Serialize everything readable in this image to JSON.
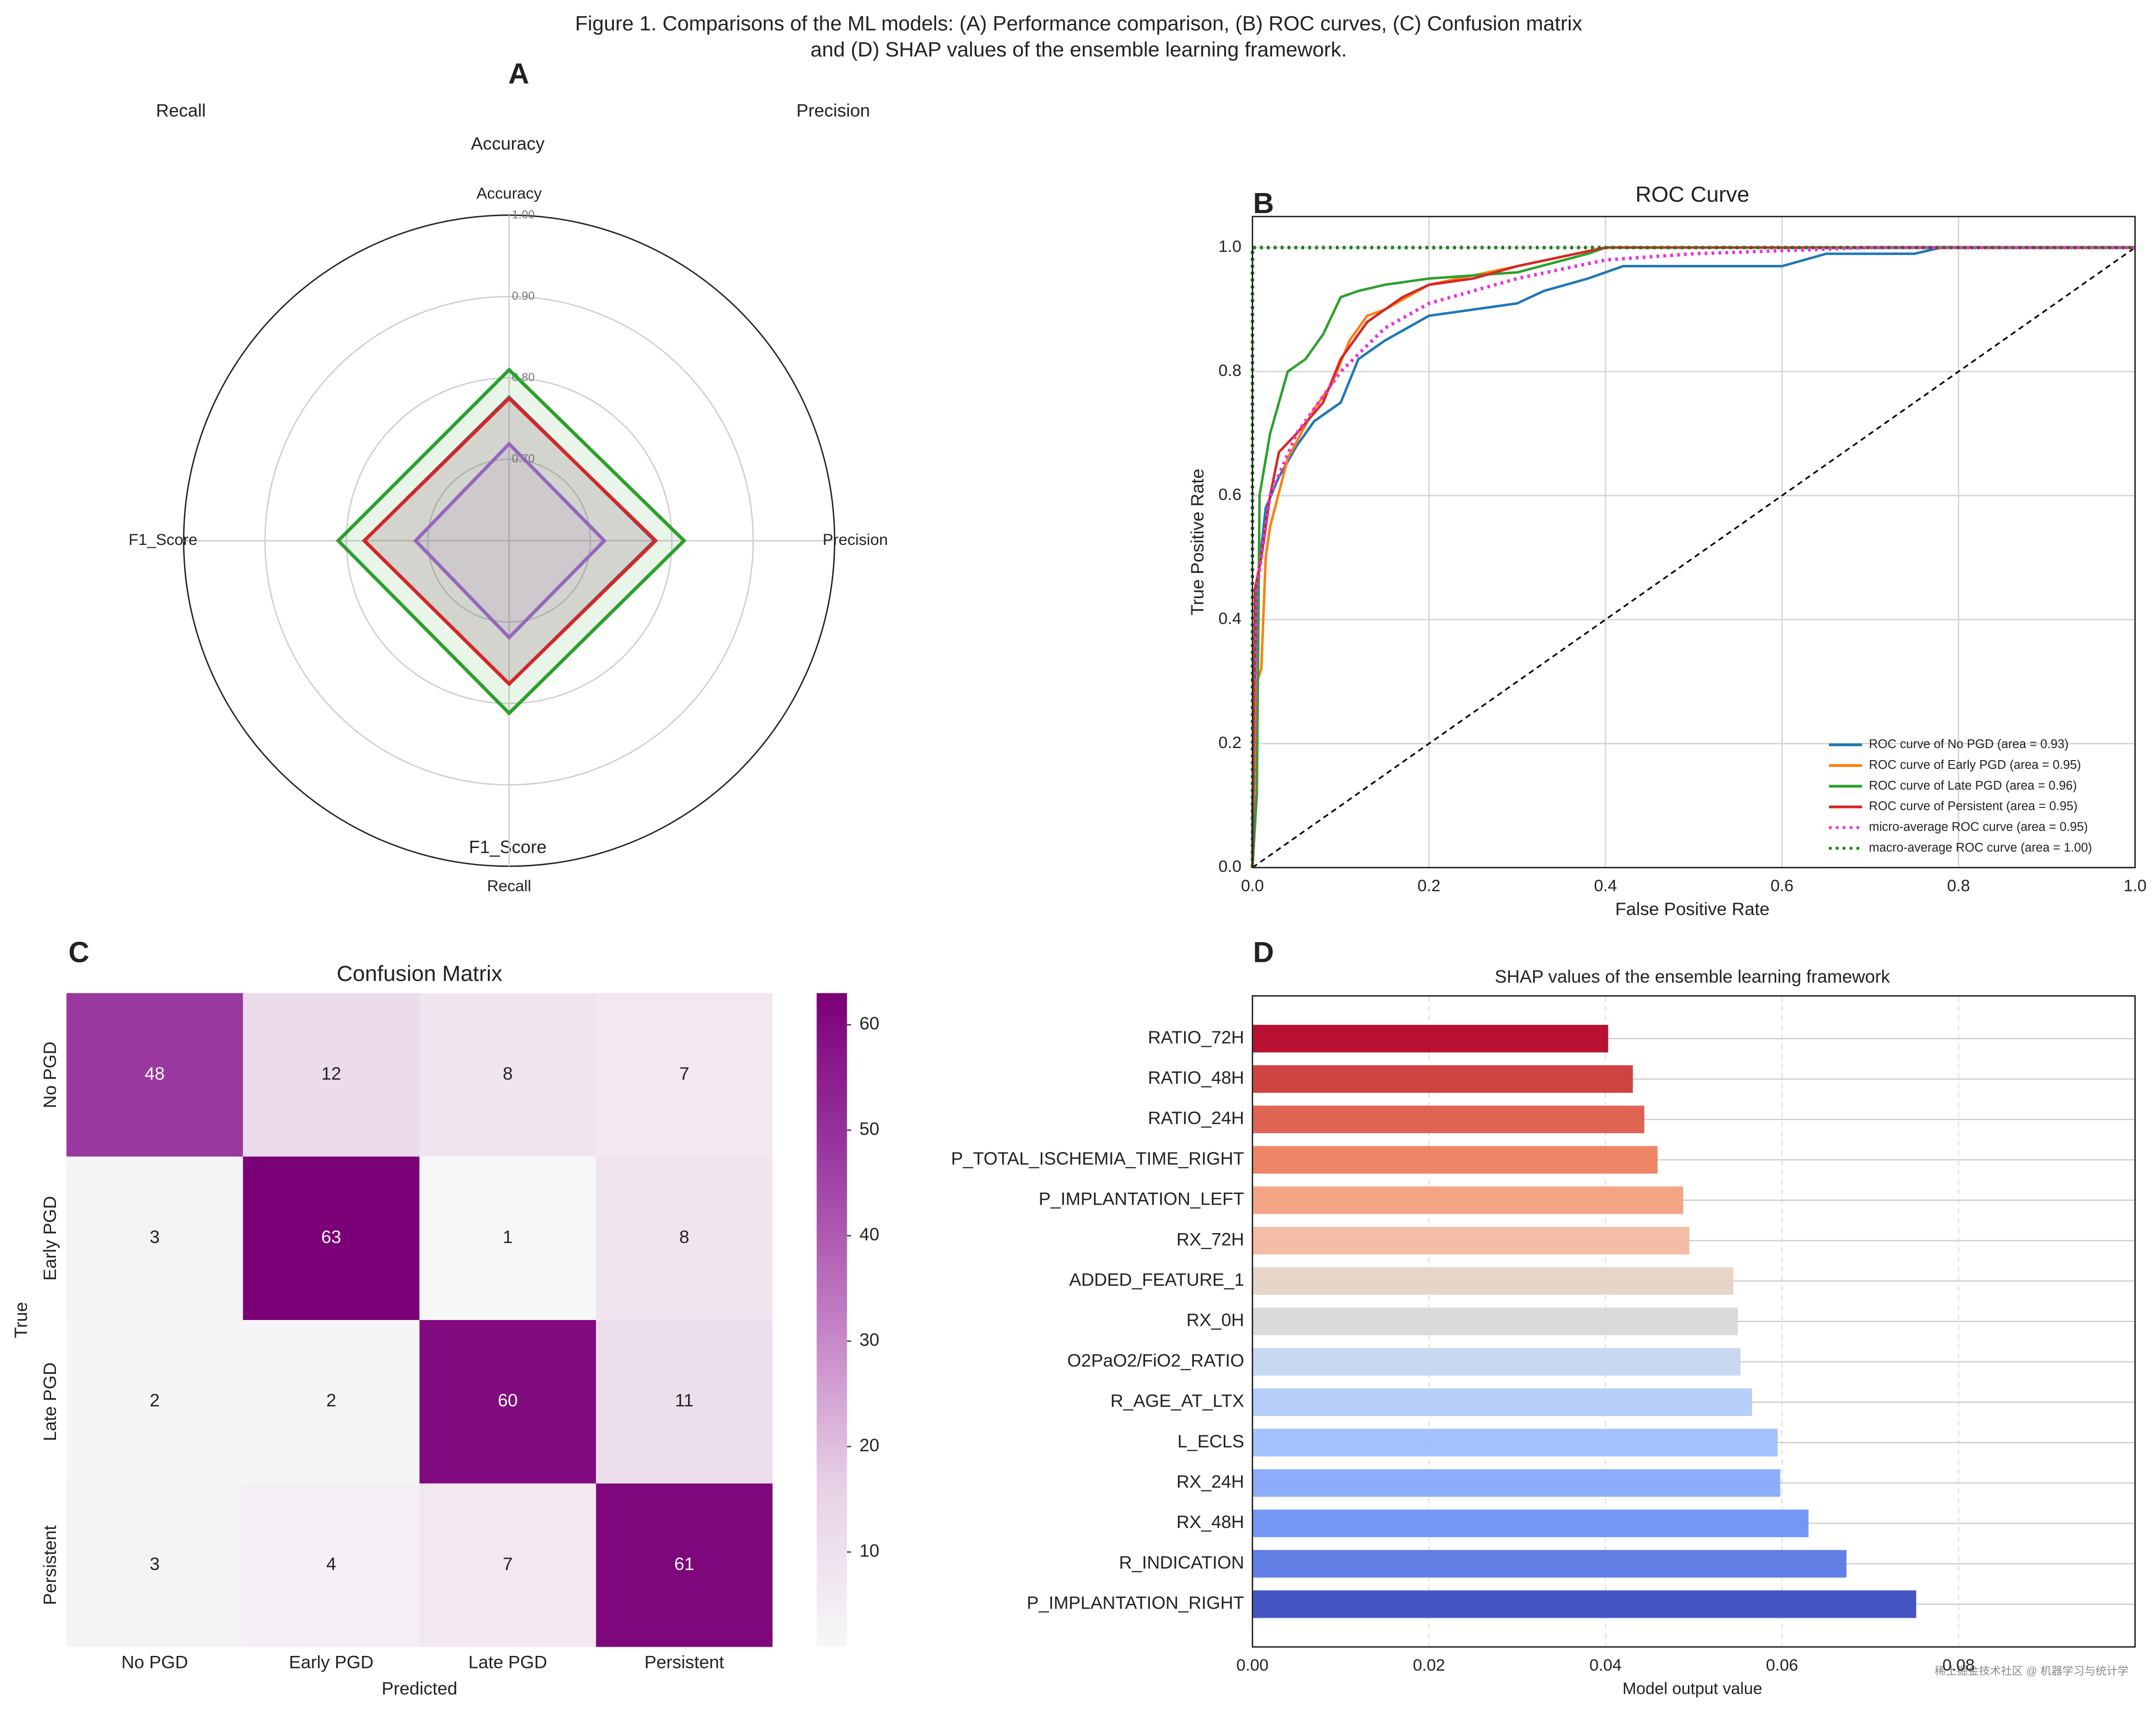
{
  "figure_title": [
    "Figure 1. Comparisons of the ML models: (A) Performance comparison, (B) ROC curves, (C) Confusion matrix",
    "and (D) SHAP values of the ensemble learning framework."
  ],
  "watermark": "稀土掘金技术社区 @ 机器学习与统计学",
  "chart_data": [
    {
      "type": "radar",
      "panel": "A",
      "annotations": [
        "Recall",
        "Accuracy",
        "Precision",
        "F1_Score"
      ],
      "axes": [
        "Accuracy",
        "Precision",
        "Recall",
        "F1_Score"
      ],
      "rlim": [
        0.6,
        1.0
      ],
      "rticks": [
        {
          "value": 0.7,
          "label": "0.70"
        },
        {
          "value": 0.8,
          "label": "0.80"
        },
        {
          "value": 0.9,
          "label": "0.90"
        },
        {
          "value": 1.0,
          "label": "1.00"
        }
      ],
      "series": [
        {
          "color": "#1f77b4",
          "values": [
            0.776,
            0.779,
            0.776,
            0.778
          ]
        },
        {
          "color": "#2ca02c",
          "values": [
            0.81,
            0.815,
            0.812,
            0.81
          ]
        },
        {
          "color": "#d62728",
          "values": [
            0.775,
            0.78,
            0.776,
            0.778
          ]
        },
        {
          "color": "#9467bd",
          "values": [
            0.719,
            0.717,
            0.719,
            0.715
          ]
        }
      ]
    },
    {
      "type": "line",
      "panel": "B",
      "title": "ROC Curve",
      "x_label": "False Positive Rate",
      "y_label": "True Positive Rate",
      "xlim": [
        0,
        1
      ],
      "ylim": [
        0,
        1.05
      ],
      "grid": true,
      "legend": "lower right",
      "xticks": [
        {
          "value": 0,
          "label": "0.0"
        },
        {
          "value": 0.2,
          "label": "0.2"
        },
        {
          "value": 0.4,
          "label": "0.4"
        },
        {
          "value": 0.6,
          "label": "0.6"
        },
        {
          "value": 0.8,
          "label": "0.8"
        },
        {
          "value": 1,
          "label": "1.0"
        }
      ],
      "yticks": [
        {
          "value": 0,
          "label": "0.0"
        },
        {
          "value": 0.2,
          "label": "0.2"
        },
        {
          "value": 0.4,
          "label": "0.4"
        },
        {
          "value": 0.6,
          "label": "0.6"
        },
        {
          "value": 0.8,
          "label": "0.8"
        },
        {
          "value": 1,
          "label": "1.0"
        }
      ],
      "series": [
        {
          "name": "ROC curve of No PGD (area = 0.93)",
          "color": "#1f77b4",
          "linestyle": "solid",
          "x": [
            0,
            0,
            0.005,
            0.015,
            0.03,
            0.05,
            0.07,
            0.1,
            0.12,
            0.15,
            0.2,
            0.25,
            0.3,
            0.33,
            0.38,
            0.42,
            0.6,
            0.65,
            0.75,
            0.78,
            1
          ],
          "y": [
            0,
            0.1,
            0.45,
            0.58,
            0.63,
            0.68,
            0.72,
            0.75,
            0.82,
            0.85,
            0.89,
            0.9,
            0.91,
            0.93,
            0.95,
            0.97,
            0.97,
            0.99,
            0.99,
            1,
            1
          ]
        },
        {
          "name": "ROC curve of Early PGD (area = 0.95)",
          "color": "#ff7f0e",
          "linestyle": "solid",
          "x": [
            0,
            0.005,
            0.01,
            0.015,
            0.02,
            0.04,
            0.07,
            0.09,
            0.11,
            0.13,
            0.15,
            0.2,
            0.3,
            0.4,
            1
          ],
          "y": [
            0,
            0.3,
            0.32,
            0.5,
            0.55,
            0.66,
            0.74,
            0.78,
            0.85,
            0.89,
            0.9,
            0.94,
            0.97,
            1,
            1
          ]
        },
        {
          "name": "ROC curve of Late PGD (area = 0.96)",
          "color": "#2ca02c",
          "linestyle": "solid",
          "x": [
            0,
            0.005,
            0.008,
            0.02,
            0.04,
            0.06,
            0.08,
            0.1,
            0.12,
            0.15,
            0.2,
            0.3,
            0.38,
            0.4,
            1
          ],
          "y": [
            0,
            0.12,
            0.6,
            0.7,
            0.8,
            0.82,
            0.86,
            0.92,
            0.93,
            0.94,
            0.95,
            0.96,
            0.99,
            1,
            1
          ]
        },
        {
          "name": "ROC curve of Persistent (area = 0.95)",
          "color": "#d62728",
          "linestyle": "solid",
          "x": [
            0,
            0.003,
            0.01,
            0.02,
            0.03,
            0.05,
            0.08,
            0.1,
            0.13,
            0.17,
            0.2,
            0.25,
            0.3,
            0.4,
            1
          ],
          "y": [
            0,
            0.45,
            0.5,
            0.6,
            0.67,
            0.7,
            0.75,
            0.82,
            0.88,
            0.92,
            0.94,
            0.95,
            0.97,
            1,
            1
          ]
        },
        {
          "name": "micro-average ROC curve (area = 0.95)",
          "color": "#e833e0",
          "linestyle": "dotted",
          "x": [
            0,
            0.005,
            0.02,
            0.05,
            0.1,
            0.15,
            0.2,
            0.3,
            0.4,
            0.5,
            0.7,
            1
          ],
          "y": [
            0,
            0.45,
            0.6,
            0.7,
            0.8,
            0.87,
            0.91,
            0.95,
            0.98,
            0.99,
            1,
            1
          ]
        },
        {
          "name": "macro-average ROC curve (area = 1.00)",
          "color": "#1a7a1a",
          "linestyle": "dotted",
          "x": [
            0,
            0,
            1
          ],
          "y": [
            0,
            1,
            1
          ]
        }
      ]
    },
    {
      "type": "heatmap",
      "panel": "C",
      "title": "Confusion Matrix",
      "x_label": "Predicted",
      "y_label": "True",
      "x_categories": [
        "No PGD",
        "Early PGD",
        "Late PGD",
        "Persistent"
      ],
      "y_categories": [
        "No PGD",
        "Early PGD",
        "Late PGD",
        "Persistent"
      ],
      "matrix": [
        [
          48,
          12,
          8,
          7
        ],
        [
          3,
          63,
          1,
          8
        ],
        [
          2,
          2,
          60,
          11
        ],
        [
          3,
          4,
          7,
          61
        ]
      ],
      "clim": [
        1,
        63
      ],
      "colorbar_ticks": [
        10,
        20,
        30,
        40,
        50,
        60
      ],
      "colormap": [
        "#f7f7f7",
        "#e7d0e6",
        "#c27ec4",
        "#9a3aa0",
        "#7b0077"
      ]
    },
    {
      "type": "bar",
      "orientation": "horizontal",
      "panel": "D",
      "title": "SHAP values of the ensemble learning framework",
      "x_label": "Model output value",
      "categories": [
        "RATIO_72H",
        "RATIO_48H",
        "RATIO_24H",
        "P_TOTAL_ISCHEMIA_TIME_RIGHT",
        "P_IMPLANTATION_LEFT",
        "RX_72H",
        "ADDED_FEATURE_1",
        "RX_0H",
        "O2PaO2/FiO2_RATIO",
        "R_AGE_AT_LTX",
        "L_ECLS",
        "RX_24H",
        "RX_48H",
        "R_INDICATION",
        "P_IMPLANTATION_RIGHT"
      ],
      "values": [
        0.0403,
        0.0431,
        0.0444,
        0.0459,
        0.0488,
        0.0495,
        0.0545,
        0.055,
        0.0553,
        0.0566,
        0.0595,
        0.0598,
        0.063,
        0.0673,
        0.0752
      ],
      "colors": [
        "#b40426",
        "#cc3a39",
        "#dc5d4a",
        "#ec7e5e",
        "#f4a081",
        "#f2bba0",
        "#e6d3c6",
        "#d8d8d8",
        "#c5d6f0",
        "#b2cbfa",
        "#9ebefc",
        "#87a9fb",
        "#6f92f3",
        "#5a78e4",
        "#3b4cc0"
      ],
      "xlim": [
        0,
        0.1
      ],
      "grid": true,
      "xticks": [
        {
          "value": 0,
          "label": "0.00"
        },
        {
          "value": 0.02,
          "label": "0.02"
        },
        {
          "value": 0.04,
          "label": "0.04"
        },
        {
          "value": 0.06,
          "label": "0.06"
        },
        {
          "value": 0.08,
          "label": "0.08"
        }
      ]
    }
  ]
}
